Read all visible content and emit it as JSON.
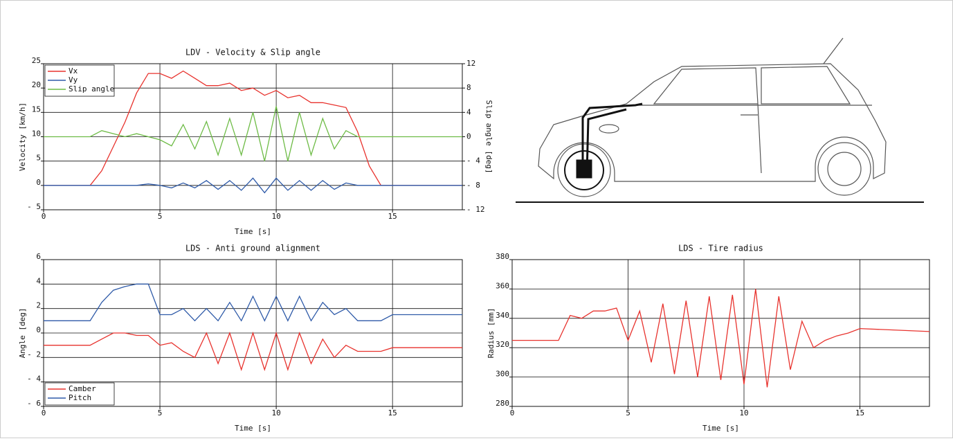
{
  "chart_data": [
    {
      "type": "line",
      "title": "LDV - Velocity & Slip angle",
      "xlabel": "Time [s]",
      "ylabel": "Velocity [km/h]",
      "y2label": "Slip angle [deg]",
      "x": [
        0,
        2,
        2.5,
        3,
        3.5,
        4,
        4.5,
        5,
        5.5,
        6,
        6.5,
        7,
        7.5,
        8,
        8.5,
        9,
        9.5,
        10,
        10.5,
        11,
        11.5,
        12,
        12.5,
        13,
        13.5,
        14,
        14.5,
        15,
        18
      ],
      "xlim": [
        0,
        18
      ],
      "xticks": [
        0,
        5,
        10,
        15
      ],
      "ylim": [
        -5,
        25
      ],
      "yticks": [
        {
          "value": -5,
          "label": "- 5"
        },
        0,
        5,
        10,
        15,
        20,
        25
      ],
      "y2lim": [
        -12,
        12
      ],
      "y2ticks": [
        {
          "value": -12,
          "label": "- 12"
        },
        {
          "value": -8,
          "label": "- 8"
        },
        {
          "value": -4,
          "label": "- 4"
        },
        0,
        4,
        8,
        12
      ],
      "grid": true,
      "legend": "upper left",
      "series": [
        {
          "name": "Vx",
          "color": "#e8322d",
          "values": [
            0,
            0,
            3,
            8,
            13,
            19,
            23,
            23,
            22,
            23.5,
            22,
            20.5,
            20.5,
            21,
            19.5,
            20,
            18.5,
            19.5,
            18,
            18.5,
            17,
            17,
            16.5,
            16,
            11,
            4,
            0,
            0,
            0
          ]
        },
        {
          "name": "Vy",
          "color": "#2e5aa8",
          "values": [
            0,
            0,
            0,
            0,
            0,
            0,
            0.3,
            0,
            -0.5,
            0.5,
            -0.5,
            1,
            -0.8,
            1,
            -1,
            1.5,
            -1.5,
            1.5,
            -1,
            1,
            -1,
            1,
            -0.8,
            0.5,
            0,
            0,
            0,
            0,
            0
          ]
        },
        {
          "name": "Slip angle",
          "color": "#6dbb45",
          "axis": "y2",
          "values": [
            0,
            0,
            1,
            0.5,
            0,
            0.5,
            0,
            -0.5,
            -1.5,
            2,
            -2,
            2.5,
            -3,
            3,
            -3,
            4,
            -4,
            5,
            -4,
            4,
            -3,
            3,
            -2,
            1,
            0,
            0,
            0,
            0,
            0
          ]
        }
      ]
    },
    {
      "type": "line",
      "title": "LDS - Anti ground alignment",
      "xlabel": "Time [s]",
      "ylabel": "Angle [deg]",
      "x": [
        0,
        2,
        2.5,
        3,
        3.5,
        4,
        4.5,
        5,
        5.5,
        6,
        6.5,
        7,
        7.5,
        8,
        8.5,
        9,
        9.5,
        10,
        10.5,
        11,
        11.5,
        12,
        12.5,
        13,
        13.5,
        14,
        14.5,
        15,
        18
      ],
      "xlim": [
        0,
        18
      ],
      "xticks": [
        0,
        5,
        10,
        15
      ],
      "ylim": [
        -6,
        6
      ],
      "yticks": [
        {
          "value": -6,
          "label": "- 6"
        },
        {
          "value": -4,
          "label": "- 4"
        },
        {
          "value": -2,
          "label": "- 2"
        },
        0,
        2,
        4,
        6
      ],
      "grid": true,
      "legend": "lower left",
      "series": [
        {
          "name": "Camber",
          "color": "#e8322d",
          "values": [
            -1,
            -1,
            -0.5,
            0,
            0,
            -0.2,
            -0.2,
            -1,
            -0.8,
            -1.5,
            -2,
            0,
            -2.5,
            0,
            -3,
            0,
            -3,
            0,
            -3,
            0,
            -2.5,
            -0.5,
            -2,
            -1,
            -1.5,
            -1.5,
            -1.5,
            -1.2,
            -1.2
          ]
        },
        {
          "name": "Pitch",
          "color": "#2e5aa8",
          "values": [
            1,
            1,
            2.5,
            3.5,
            3.8,
            4,
            4,
            1.5,
            1.5,
            2,
            1,
            2,
            1,
            2.5,
            1,
            3,
            1,
            3,
            1,
            3,
            1,
            2.5,
            1.5,
            2,
            1,
            1,
            1,
            1.5,
            1.5
          ]
        }
      ]
    },
    {
      "type": "line",
      "title": "LDS - Tire radius",
      "xlabel": "Time [s]",
      "ylabel": "Radius [mm]",
      "x": [
        0,
        2,
        2.5,
        3,
        3.5,
        4,
        4.5,
        5,
        5.5,
        6,
        6.5,
        7,
        7.5,
        8,
        8.5,
        9,
        9.5,
        10,
        10.5,
        11,
        11.5,
        12,
        12.5,
        13,
        13.5,
        14,
        14.5,
        15,
        18
      ],
      "xlim": [
        0,
        18
      ],
      "xticks": [
        0,
        5,
        10,
        15
      ],
      "ylim": [
        280,
        380
      ],
      "yticks": [
        280,
        300,
        320,
        340,
        360,
        380
      ],
      "grid": true,
      "series": [
        {
          "color": "#e8322d",
          "values": [
            325,
            325,
            342,
            340,
            345,
            345,
            347,
            325,
            345,
            310,
            350,
            302,
            352,
            300,
            355,
            298,
            356,
            295,
            360,
            293,
            355,
            305,
            338,
            320,
            325,
            328,
            330,
            333,
            331
          ]
        }
      ]
    }
  ]
}
